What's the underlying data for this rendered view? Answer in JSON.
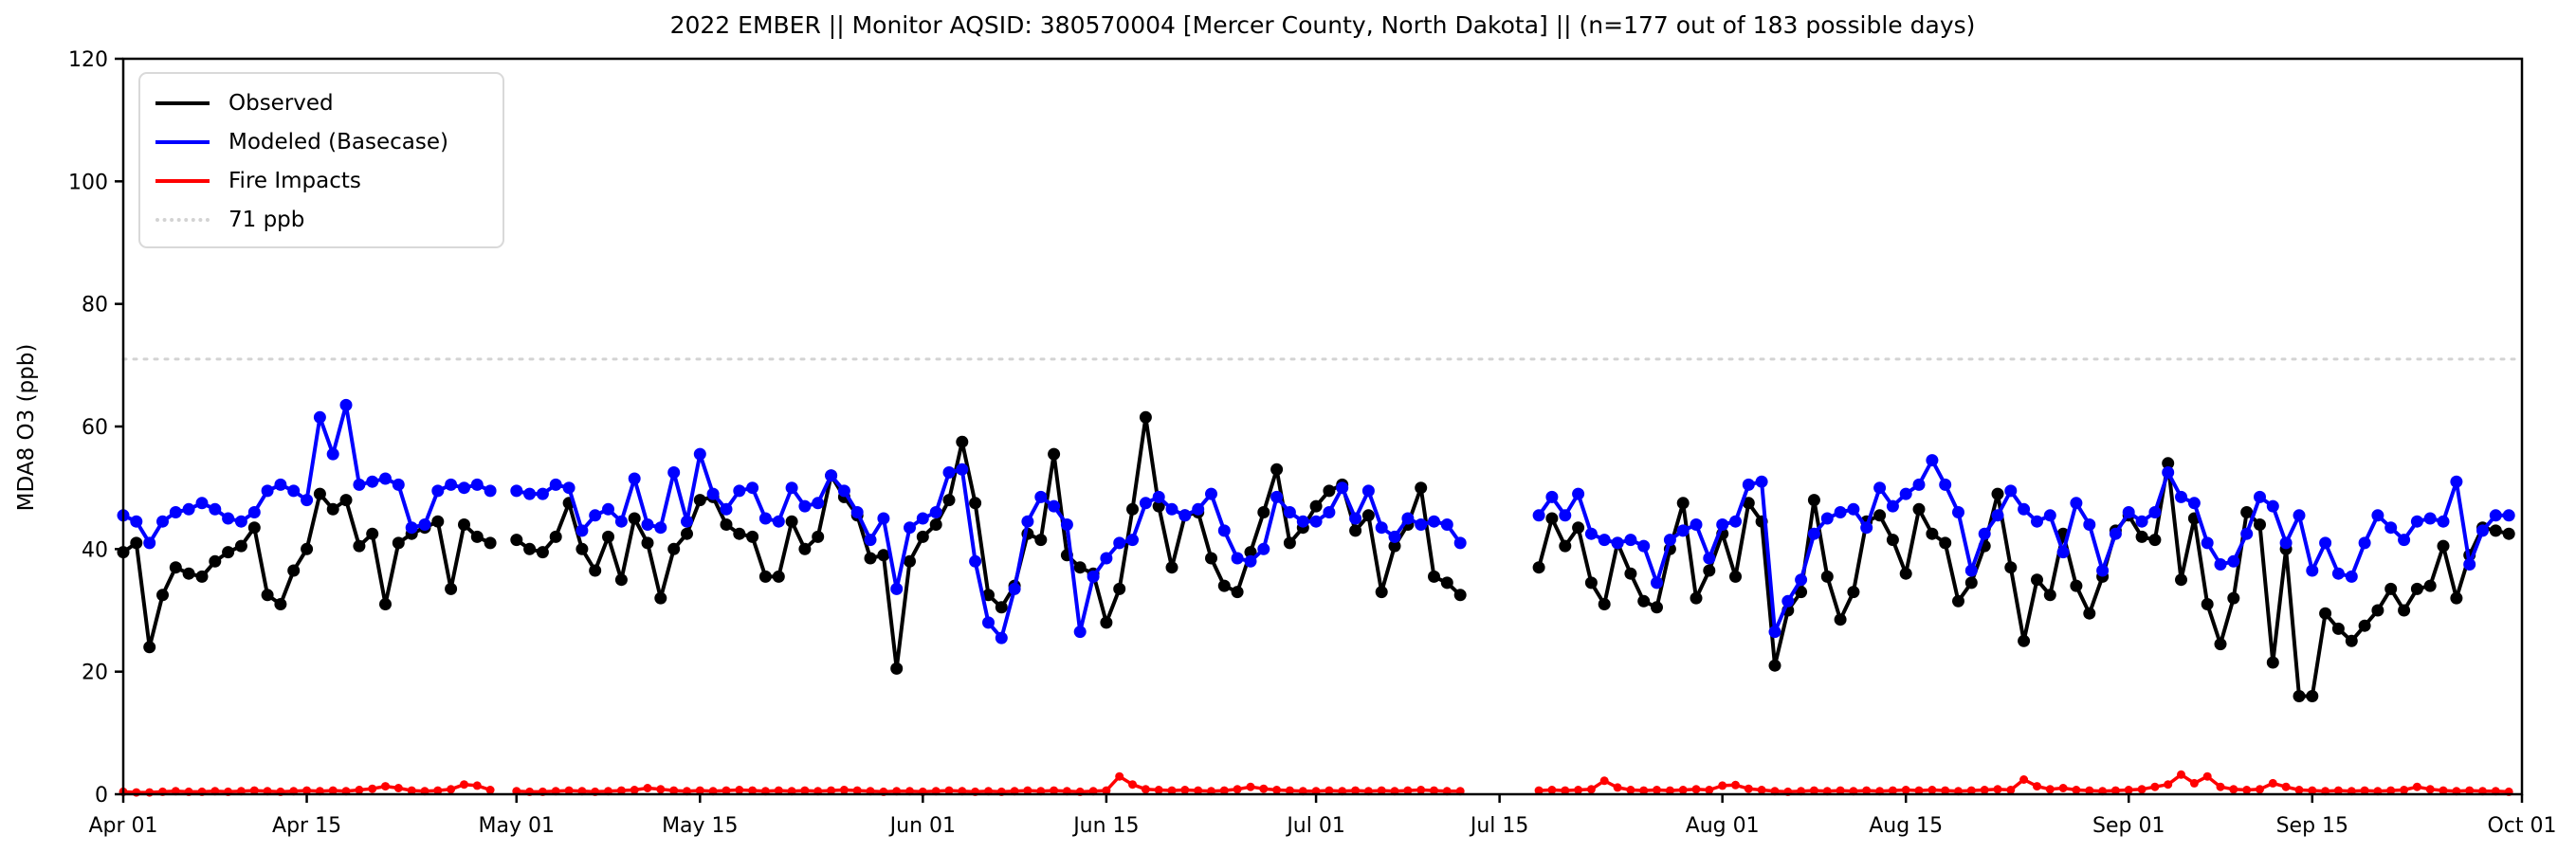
{
  "chart_data": {
    "type": "line",
    "title": "2022 EMBER || Monitor AQSID: 380570004 [Mercer County, North Dakota] || (n=177 out of 183 possible days)",
    "ylabel": "MDA8 O3 (ppb)",
    "xlabel": "",
    "ylim": [
      0,
      120
    ],
    "yticks": [
      0,
      20,
      40,
      60,
      80,
      100,
      120
    ],
    "n_days": 183,
    "x_range": [
      "Apr 01",
      "Oct 01"
    ],
    "grid": false,
    "legend_position": "upper-left",
    "monitor_days_reported": 177,
    "monitor_days_possible": 183,
    "missing_days": [
      "Apr 30",
      "Jul 13",
      "Jul 14",
      "Jul 15",
      "Jul 16",
      "Jul 17"
    ],
    "xticks": [
      {
        "label": "Apr 01",
        "day": 0
      },
      {
        "label": "Apr 15",
        "day": 14
      },
      {
        "label": "May 01",
        "day": 30
      },
      {
        "label": "May 15",
        "day": 44
      },
      {
        "label": "Jun 01",
        "day": 61
      },
      {
        "label": "Jun 15",
        "day": 75
      },
      {
        "label": "Jul 01",
        "day": 91
      },
      {
        "label": "Jul 15",
        "day": 105
      },
      {
        "label": "Aug 01",
        "day": 122
      },
      {
        "label": "Aug 15",
        "day": 136
      },
      {
        "label": "Sep 01",
        "day": 153
      },
      {
        "label": "Sep 15",
        "day": 167
      },
      {
        "label": "Oct 01",
        "day": 183
      }
    ],
    "reference_line": {
      "label": "71 ppb",
      "value": 71,
      "color": "#d3d3d3",
      "style": "dotted"
    },
    "series": [
      {
        "name": "Observed",
        "color": "#000000",
        "values": [
          39.5,
          41,
          24,
          32.5,
          37,
          36,
          35.5,
          38,
          39.5,
          40.5,
          43.5,
          32.5,
          31,
          36.5,
          40,
          49,
          46.5,
          48,
          40.5,
          42.5,
          31,
          41,
          42.5,
          43.5,
          44.5,
          33.5,
          44,
          42,
          41,
          null,
          41.5,
          40,
          39.5,
          42,
          47.5,
          40,
          36.5,
          42,
          35,
          45,
          41,
          32,
          40,
          42.5,
          48,
          48.5,
          44,
          42.5,
          42,
          35.5,
          35.5,
          44.5,
          40,
          42,
          52,
          48.5,
          45.5,
          38.5,
          39,
          20.5,
          38,
          42,
          44,
          48,
          57.5,
          47.5,
          32.5,
          30.5,
          34,
          42.5,
          41.5,
          55.5,
          39,
          37,
          36,
          28,
          33.5,
          46.5,
          61.5,
          47,
          37,
          45.5,
          46,
          38.5,
          34,
          33,
          39.5,
          46,
          53,
          41,
          43.5,
          47,
          49.5,
          50.5,
          43,
          45.5,
          33,
          40.5,
          44,
          50,
          35.5,
          34.5,
          32.5,
          null,
          null,
          null,
          null,
          null,
          37,
          45,
          40.5,
          43.5,
          34.5,
          31,
          41,
          36,
          31.5,
          30.5,
          40,
          47.5,
          32,
          36.5,
          42.5,
          35.5,
          47.5,
          44.5,
          21,
          30,
          33,
          48,
          35.5,
          28.5,
          33,
          44.5,
          45.5,
          41.5,
          36,
          46.5,
          42.5,
          41,
          31.5,
          34.5,
          40.5,
          49,
          37,
          25,
          35,
          32.5,
          42.5,
          34,
          29.5,
          35.5,
          43,
          45.5,
          42,
          41.5,
          54,
          35,
          45,
          31,
          24.5,
          32,
          46,
          44,
          21.5,
          40,
          16,
          16,
          29.5,
          27,
          25,
          27.5,
          30,
          33.5,
          30,
          33.5,
          34,
          40.5,
          32,
          39,
          43.5,
          43,
          42.5
        ]
      },
      {
        "name": "Modeled (Basecase)",
        "color": "#0000ff",
        "values": [
          45.5,
          44.5,
          41,
          44.5,
          46,
          46.5,
          47.5,
          46.5,
          45,
          44.5,
          46,
          49.5,
          50.5,
          49.5,
          48,
          61.5,
          55.5,
          63.5,
          50.5,
          51,
          51.5,
          50.5,
          43.5,
          44,
          49.5,
          50.5,
          50,
          50.5,
          49.5,
          null,
          49.5,
          49,
          49,
          50.5,
          50,
          43,
          45.5,
          46.5,
          44.5,
          51.5,
          44,
          43.5,
          52.5,
          44.5,
          55.5,
          49,
          46.5,
          49.5,
          50,
          45,
          44.5,
          50,
          47,
          47.5,
          52,
          49.5,
          46,
          41.5,
          45,
          33.5,
          43.5,
          45,
          46,
          52.5,
          53,
          38,
          28,
          25.5,
          33.5,
          44.5,
          48.5,
          47,
          44,
          26.5,
          35.5,
          38.5,
          41,
          41.5,
          47.5,
          48.5,
          46.5,
          45.5,
          46.5,
          49,
          43,
          38.5,
          38,
          40,
          48.5,
          46,
          44.5,
          44.5,
          46,
          50,
          45,
          49.5,
          43.5,
          42,
          45,
          44,
          44.5,
          44,
          41,
          null,
          null,
          null,
          null,
          null,
          45.5,
          48.5,
          45.5,
          49,
          42.5,
          41.5,
          41,
          41.5,
          40.5,
          34.5,
          41.5,
          43,
          44,
          38.5,
          44,
          44.5,
          50.5,
          51,
          26.5,
          31.5,
          35,
          42.5,
          45,
          46,
          46.5,
          43.5,
          50,
          47,
          49,
          50.5,
          54.5,
          50.5,
          46,
          36.5,
          42.5,
          45.5,
          49.5,
          46.5,
          44.5,
          45.5,
          39.5,
          47.5,
          44,
          36.5,
          42.5,
          46,
          44.5,
          46,
          52.5,
          48.5,
          47.5,
          41,
          37.5,
          38,
          42.5,
          48.5,
          47,
          41,
          45.5,
          36.5,
          41,
          36,
          35.5,
          41,
          45.5,
          43.5,
          41.5,
          44.5,
          45,
          44.5,
          51,
          37.5,
          43,
          45.5,
          45.5
        ]
      },
      {
        "name": "Fire Impacts",
        "color": "#ff0000",
        "values": [
          0.4,
          0.3,
          0.3,
          0.4,
          0.5,
          0.4,
          0.4,
          0.5,
          0.4,
          0.5,
          0.6,
          0.5,
          0.4,
          0.5,
          0.6,
          0.5,
          0.6,
          0.5,
          0.7,
          0.9,
          1.3,
          1.0,
          0.6,
          0.5,
          0.6,
          0.8,
          1.6,
          1.4,
          0.7,
          null,
          0.5,
          0.4,
          0.4,
          0.5,
          0.6,
          0.5,
          0.4,
          0.5,
          0.6,
          0.7,
          1.0,
          0.8,
          0.6,
          0.5,
          0.6,
          0.5,
          0.6,
          0.7,
          0.6,
          0.5,
          0.6,
          0.5,
          0.6,
          0.5,
          0.6,
          0.7,
          0.6,
          0.5,
          0.4,
          0.5,
          0.5,
          0.4,
          0.5,
          0.6,
          0.5,
          0.4,
          0.5,
          0.4,
          0.5,
          0.6,
          0.5,
          0.6,
          0.5,
          0.4,
          0.5,
          0.6,
          2.9,
          1.6,
          0.8,
          0.7,
          0.6,
          0.7,
          0.6,
          0.5,
          0.6,
          0.8,
          1.2,
          0.9,
          0.7,
          0.6,
          0.5,
          0.5,
          0.6,
          0.5,
          0.6,
          0.5,
          0.6,
          0.5,
          0.6,
          0.7,
          0.6,
          0.5,
          0.5,
          null,
          null,
          null,
          null,
          null,
          0.6,
          0.7,
          0.6,
          0.7,
          0.8,
          2.2,
          1.1,
          0.7,
          0.6,
          0.7,
          0.6,
          0.7,
          0.8,
          0.7,
          1.4,
          1.5,
          0.9,
          0.7,
          0.5,
          0.4,
          0.5,
          0.6,
          0.5,
          0.6,
          0.5,
          0.6,
          0.5,
          0.6,
          0.7,
          0.6,
          0.7,
          0.6,
          0.5,
          0.6,
          0.7,
          0.8,
          0.7,
          2.4,
          1.3,
          0.8,
          1.0,
          0.7,
          0.6,
          0.5,
          0.6,
          0.7,
          0.8,
          1.2,
          1.6,
          3.2,
          1.8,
          2.9,
          1.2,
          0.8,
          0.7,
          0.8,
          1.8,
          1.2,
          0.7,
          0.6,
          0.5,
          0.6,
          0.5,
          0.6,
          0.5,
          0.6,
          0.7,
          1.2,
          0.8,
          0.6,
          0.5,
          0.6,
          0.5,
          0.5,
          0.4
        ]
      }
    ],
    "legend_entries": [
      {
        "label": "Observed"
      },
      {
        "label": "Modeled (Basecase)"
      },
      {
        "label": "Fire Impacts"
      },
      {
        "label": "71 ppb"
      }
    ]
  }
}
